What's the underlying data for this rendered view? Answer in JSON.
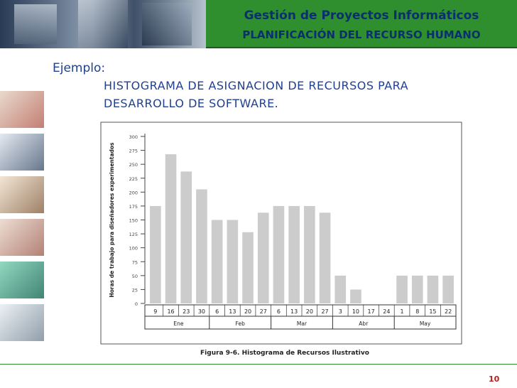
{
  "header": {
    "title": "Gestión de Proyectos Informáticos",
    "subtitle": "PLANIFICACIÓN DEL RECURSO HUMANO"
  },
  "content": {
    "intro": "Ejemplo:",
    "heading_line1": "HISTOGRAMA DE ASIGNACION DE RECURSOS PARA",
    "heading_line2": "DESARROLLO DE SOFTWARE."
  },
  "footer": {
    "page_number": "10"
  },
  "colors": {
    "bar": "#cccccc",
    "banner": "#2f8f2f",
    "title_text": "#0a2f6e",
    "body_text": "#1f3f8f",
    "page_number": "#b81e1e"
  },
  "chart_data": {
    "type": "bar",
    "title": "Figura 9-6. Histograma de Recursos Ilustrativo",
    "ylabel": "Horas de trabajo para diseñadores experimentados",
    "xlabel": "",
    "ylim": [
      0,
      300
    ],
    "yticks": [
      0,
      25,
      50,
      75,
      100,
      125,
      150,
      175,
      200,
      225,
      250,
      275,
      300
    ],
    "ytick_labels": [
      "0",
      "25",
      "50",
      "75",
      "100",
      "125",
      "150",
      "175",
      "200",
      "225",
      "250",
      "275",
      "300"
    ],
    "categories": [
      "9",
      "16",
      "23",
      "30",
      "6",
      "13",
      "20",
      "27",
      "6",
      "13",
      "20",
      "27",
      "3",
      "10",
      "17",
      "24",
      "1",
      "8",
      "15",
      "22"
    ],
    "values": [
      175,
      268,
      237,
      205,
      150,
      150,
      128,
      163,
      175,
      175,
      175,
      163,
      50,
      25,
      0,
      0,
      50,
      50,
      50,
      50
    ],
    "months": [
      {
        "label": "Ene",
        "span": 4
      },
      {
        "label": "Feb",
        "span": 4
      },
      {
        "label": "Mar",
        "span": 4
      },
      {
        "label": "Abr",
        "span": 4
      },
      {
        "label": "May",
        "span": 4
      }
    ],
    "grid": false,
    "legend": "none"
  }
}
